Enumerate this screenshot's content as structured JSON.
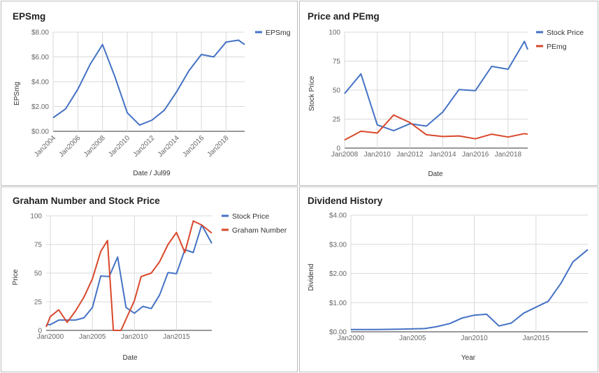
{
  "colors": {
    "blue": "#4472c4",
    "red": "#d9482b",
    "grid": "#d9d9d9"
  },
  "chart_data": [
    {
      "type": "line",
      "title": "EPSmg",
      "xlabel": "Date / Jul99",
      "ylabel": "EPSmg",
      "x_ticks": [
        "Jan2004",
        "Jan2006",
        "Jan2008",
        "Jan2010",
        "Jan2012",
        "Jan2014",
        "Jan2016",
        "Jan2018"
      ],
      "y_ticks": [
        "$0.00",
        "$2.00",
        "$4.00",
        "$6.00",
        "$8.00"
      ],
      "xlim": [
        2004,
        2019.5
      ],
      "ylim": [
        0,
        8
      ],
      "grid": true,
      "legend_position": "right",
      "series": [
        {
          "name": "EPSmg",
          "color": "#4472c4",
          "points": [
            [
              2004,
              1.1
            ],
            [
              2005,
              1.8
            ],
            [
              2006,
              3.4
            ],
            [
              2007,
              5.4
            ],
            [
              2008,
              7.0
            ],
            [
              2009,
              4.4
            ],
            [
              2010,
              1.5
            ],
            [
              2011,
              0.5
            ],
            [
              2012,
              0.9
            ],
            [
              2013,
              1.7
            ],
            [
              2014,
              3.2
            ],
            [
              2015,
              4.9
            ],
            [
              2016,
              6.2
            ],
            [
              2017,
              6.0
            ],
            [
              2018,
              7.2
            ],
            [
              2019,
              7.35
            ],
            [
              2019.5,
              7.0
            ]
          ]
        }
      ]
    },
    {
      "type": "line",
      "title": "Price and PEmg",
      "xlabel": "Date",
      "ylabel": "Stock Price",
      "x_ticks": [
        "Jan2008",
        "Jan2010",
        "Jan2012",
        "Jan2014",
        "Jan2016",
        "Jan2018"
      ],
      "y_ticks": [
        "0",
        "25",
        "50",
        "75",
        "100"
      ],
      "xlim": [
        2008,
        2019.2
      ],
      "ylim": [
        0,
        100
      ],
      "grid": true,
      "legend_position": "right",
      "series": [
        {
          "name": "Stock Price",
          "color": "#4472c4",
          "points": [
            [
              2008,
              47
            ],
            [
              2009,
              64
            ],
            [
              2010,
              20
            ],
            [
              2011,
              15
            ],
            [
              2012,
              21
            ],
            [
              2013,
              19
            ],
            [
              2014,
              31
            ],
            [
              2015,
              50.5
            ],
            [
              2016,
              49.5
            ],
            [
              2017,
              70.5
            ],
            [
              2018,
              68
            ],
            [
              2019,
              92
            ],
            [
              2019.2,
              85
            ]
          ]
        },
        {
          "name": "PEmg",
          "color": "#d9482b",
          "points": [
            [
              2008,
              7
            ],
            [
              2009,
              14.5
            ],
            [
              2010,
              13
            ],
            [
              2011,
              28.5
            ],
            [
              2012,
              22
            ],
            [
              2013,
              11.5
            ],
            [
              2014,
              10
            ],
            [
              2015,
              10.5
            ],
            [
              2016,
              8
            ],
            [
              2017,
              12
            ],
            [
              2018,
              9.5
            ],
            [
              2019,
              12.5
            ],
            [
              2019.2,
              12
            ]
          ]
        }
      ]
    },
    {
      "type": "line",
      "title": "Graham Number and Stock Price",
      "xlabel": "Date",
      "ylabel": "Price",
      "x_ticks": [
        "Jan2000",
        "Jan2005",
        "Jan2010",
        "Jan2015"
      ],
      "y_ticks": [
        "0",
        "25",
        "50",
        "75",
        "100"
      ],
      "xlim": [
        1999.5,
        2019.2
      ],
      "ylim": [
        0,
        100
      ],
      "grid": true,
      "legend_position": "right",
      "series": [
        {
          "name": "Stock Price",
          "color": "#4472c4",
          "points": [
            [
              1999.5,
              5
            ],
            [
              2000,
              5
            ],
            [
              2001,
              9
            ],
            [
              2002,
              9
            ],
            [
              2003,
              9
            ],
            [
              2004,
              11
            ],
            [
              2005,
              20
            ],
            [
              2006,
              47.5
            ],
            [
              2007,
              47
            ],
            [
              2008,
              64
            ],
            [
              2009,
              20
            ],
            [
              2010,
              15
            ],
            [
              2011,
              21
            ],
            [
              2012,
              19
            ],
            [
              2013,
              31
            ],
            [
              2014,
              50.5
            ],
            [
              2015,
              49.5
            ],
            [
              2016,
              70.5
            ],
            [
              2017,
              68
            ],
            [
              2018,
              92
            ],
            [
              2019.2,
              76
            ]
          ]
        },
        {
          "name": "Graham Number",
          "color": "#d9482b",
          "points": [
            [
              1999.5,
              3
            ],
            [
              2000,
              12
            ],
            [
              2001,
              18
            ],
            [
              2002,
              7
            ],
            [
              2003,
              17
            ],
            [
              2004,
              29
            ],
            [
              2005,
              45
            ],
            [
              2006,
              69
            ],
            [
              2006.8,
              78.5
            ],
            [
              2007.5,
              0
            ],
            [
              2008.4,
              0
            ],
            [
              2010,
              26
            ],
            [
              2010.8,
              47
            ],
            [
              2012,
              50
            ],
            [
              2013,
              60
            ],
            [
              2014,
              75
            ],
            [
              2015,
              85.5
            ],
            [
              2016,
              68
            ],
            [
              2017,
              95.5
            ],
            [
              2018,
              92
            ],
            [
              2019.2,
              85
            ]
          ]
        }
      ]
    },
    {
      "type": "line",
      "title": "Dividend History",
      "xlabel": "Year",
      "ylabel": "Dividend",
      "x_ticks": [
        "Jan2000",
        "Jan2005",
        "Jan2010",
        "Jan2015"
      ],
      "y_ticks": [
        "$0.00",
        "$1.00",
        "$2.00",
        "$3.00",
        "$4.00"
      ],
      "xlim": [
        2000,
        2019.2
      ],
      "ylim": [
        0,
        4
      ],
      "grid": true,
      "series": [
        {
          "name": "",
          "color": "#4472c4",
          "points": [
            [
              2000,
              0.08
            ],
            [
              2002,
              0.08
            ],
            [
              2004,
              0.09
            ],
            [
              2006,
              0.11
            ],
            [
              2007,
              0.18
            ],
            [
              2008,
              0.28
            ],
            [
              2009,
              0.47
            ],
            [
              2010,
              0.57
            ],
            [
              2011,
              0.6
            ],
            [
              2012,
              0.2
            ],
            [
              2013,
              0.3
            ],
            [
              2014,
              0.64
            ],
            [
              2016,
              1.05
            ],
            [
              2017,
              1.65
            ],
            [
              2018,
              2.4
            ],
            [
              2019.2,
              2.82
            ]
          ]
        }
      ]
    }
  ]
}
